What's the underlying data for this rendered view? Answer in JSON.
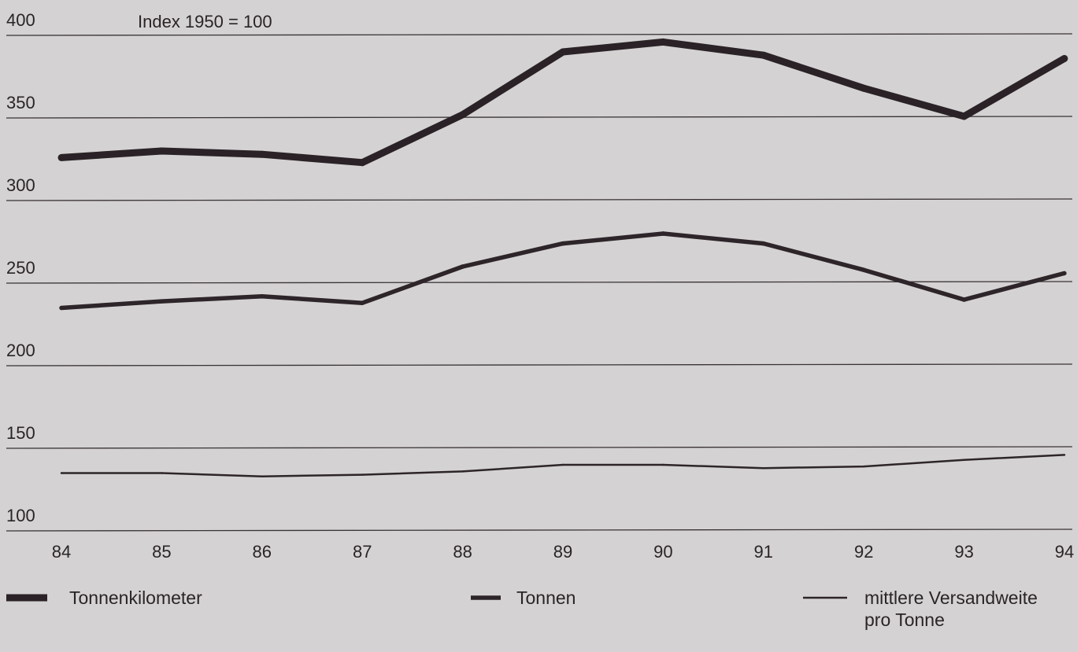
{
  "chart_data": {
    "type": "line",
    "annotation": "Index 1950 = 100",
    "categories": [
      "84",
      "85",
      "86",
      "87",
      "88",
      "89",
      "90",
      "91",
      "92",
      "93",
      "94"
    ],
    "y_ticks": [
      "400",
      "350",
      "300",
      "250",
      "200",
      "150",
      "100"
    ],
    "ylim": [
      100,
      400
    ],
    "grid": true,
    "legend_position": "bottom",
    "series": [
      {
        "name": "Tonnenkilometer",
        "values": [
          326,
          330,
          328,
          323,
          352,
          390,
          396,
          388,
          368,
          351,
          386
        ],
        "color": "#2a2226"
      },
      {
        "name": "Tonnen",
        "values": [
          235,
          239,
          242,
          238,
          260,
          274,
          280,
          274,
          258,
          240,
          256
        ],
        "color": "#2d2529"
      },
      {
        "name": "mittlere Versanddeweite pro Tonne",
        "values": [
          135,
          135,
          133,
          134,
          136,
          140,
          140,
          138,
          139,
          143,
          146
        ],
        "color": "#2d2529"
      }
    ],
    "legend": [
      {
        "lines": [
          "Tonnenkilometer"
        ]
      },
      {
        "lines": [
          "Tonnen"
        ]
      },
      {
        "lines": [
          "mittlere Versandweite",
          "pro Tonne"
        ]
      }
    ]
  }
}
